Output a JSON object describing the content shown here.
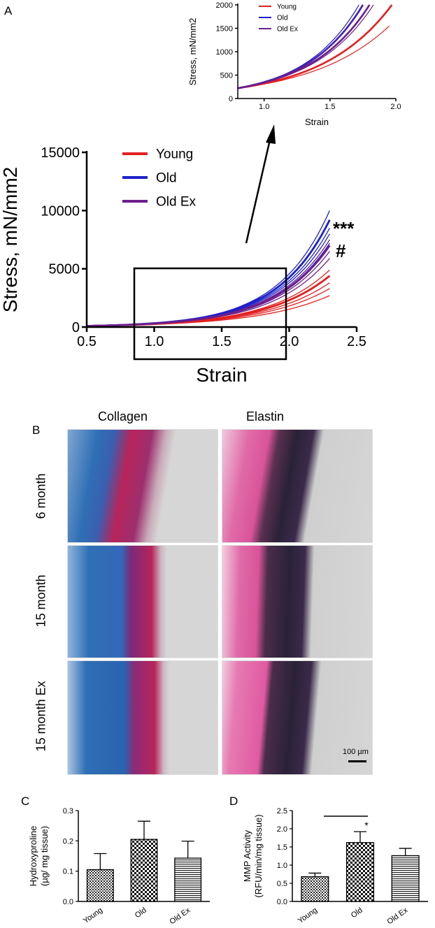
{
  "panel_labels": {
    "a": "A",
    "b": "B",
    "c": "C",
    "d": "D"
  },
  "annotations": {
    "sig_old": "***",
    "sig_oldex": "#",
    "sig_mmp": "*"
  },
  "micrographs": {
    "col_headers": [
      "Collagen",
      "Elastin"
    ],
    "row_labels": [
      "6 month",
      "15 month",
      "15 month Ex"
    ],
    "scale_bar": "100 µm",
    "colors": {
      "collagen_blue": "#2f6fb5",
      "collagen_red": "#b8245a",
      "elastin_pink": "#e06aa8",
      "elastin_dark": "#2a2238",
      "background": "#d6d6d6"
    }
  },
  "chart_data": [
    {
      "type": "line",
      "panel": "A",
      "xlabel": "Strain",
      "ylabel": "Stress, mN/mm2",
      "xlim": [
        0.5,
        2.5
      ],
      "ylim": [
        0,
        15000
      ],
      "xticks": [
        "0.5",
        "1.0",
        "1.5",
        "2.0",
        "2.5"
      ],
      "yticks": [
        "0",
        "5000",
        "10000",
        "15000"
      ],
      "legend_position": "top-left",
      "series": [
        {
          "name": "Young",
          "color": "#e32020",
          "end_values": [
            2700,
            3300,
            3800,
            4400,
            4900
          ]
        },
        {
          "name": "Old",
          "color": "#1f22c9",
          "end_values": [
            7200,
            8000,
            8500,
            9200,
            10000
          ]
        },
        {
          "name": "Old Ex",
          "color": "#6d1f8c",
          "end_values": [
            5900,
            6500,
            7000,
            7500
          ]
        }
      ]
    },
    {
      "type": "line",
      "panel": "A-inset",
      "xlabel": "Strain",
      "ylabel": "Stress, mN/mm2",
      "xlim": [
        0.8,
        2.0
      ],
      "ylim": [
        0,
        2000
      ],
      "xticks": [
        "1.0",
        "1.5",
        "2.0"
      ],
      "yticks": [
        "0",
        "500",
        "1000",
        "1500",
        "2000"
      ],
      "legend_position": "top-left",
      "series": [
        {
          "name": "Young",
          "color": "#e32020"
        },
        {
          "name": "Old",
          "color": "#1f22c9"
        },
        {
          "name": "Old Ex",
          "color": "#6d1f8c"
        }
      ]
    },
    {
      "type": "bar",
      "panel": "C",
      "categories": [
        "Young",
        "Old",
        "Old Ex"
      ],
      "values": [
        0.105,
        0.205,
        0.143
      ],
      "errors": [
        0.053,
        0.06,
        0.056
      ],
      "patterns": [
        "dots",
        "checker",
        "hlines"
      ],
      "ylabel": "Hydroxyproline\n(µg/ mg tissue)",
      "ylim": [
        0,
        0.3
      ],
      "yticks": [
        "0.0",
        "0.1",
        "0.2",
        "0.3"
      ]
    },
    {
      "type": "bar",
      "panel": "D",
      "categories": [
        "Young",
        "Old",
        "Old Ex"
      ],
      "values": [
        0.68,
        1.62,
        1.26
      ],
      "errors": [
        0.1,
        0.3,
        0.2
      ],
      "patterns": [
        "dots",
        "checker",
        "hlines"
      ],
      "ylabel": "MMP Activity\n(RFU/min/mg tissue)",
      "ylim": [
        0,
        2.5
      ],
      "yticks": [
        "0.0",
        "0.5",
        "1.0",
        "1.5",
        "2.0",
        "2.5"
      ]
    }
  ]
}
